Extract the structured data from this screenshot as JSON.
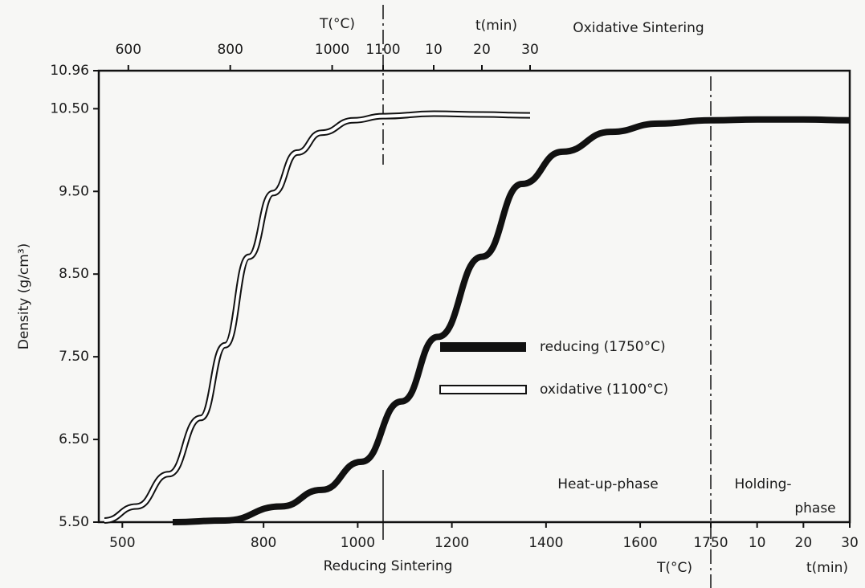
{
  "chart_data": {
    "type": "line",
    "y_label": "Density (g/cm³)",
    "ylim": [
      5.5,
      10.96
    ],
    "yticks": [
      {
        "value": 5.5,
        "label": "5.50"
      },
      {
        "value": 6.5,
        "label": "6.50"
      },
      {
        "value": 7.5,
        "label": "7.50"
      },
      {
        "value": 8.5,
        "label": "8.50"
      },
      {
        "value": 9.5,
        "label": "9.50"
      },
      {
        "value": 10.5,
        "label": "10.50"
      },
      10.96
    ],
    "x_title": "Reducing Sintering",
    "x_unit": "T(°C)",
    "xlim": [
      450,
      1750
    ],
    "xticks": [
      500,
      800,
      1000,
      1200,
      1400,
      1600,
      1750
    ],
    "x_time_unit": "t(min)",
    "x_time_lim": [
      0,
      30
    ],
    "x_time_ticks": [
      10,
      20,
      30
    ],
    "top_title": "Oxidative Sintering",
    "top_unit": "T(°C)",
    "top_xlim": [
      542,
      1100
    ],
    "top_xticks": [
      600,
      800,
      1000,
      1100
    ],
    "top_time_unit": "t(min)",
    "top_time_lim": [
      0,
      30
    ],
    "top_time_ticks": [
      10,
      20,
      30
    ],
    "phase_labels": [
      "Heat-up-phase",
      "Holding-",
      "phase"
    ],
    "series": [
      {
        "name": "reducing (1750°C)",
        "axis": "bottom",
        "color": "#111111",
        "x": [
          607,
          718,
          837,
          923,
          1008,
          1093,
          1170,
          1264,
          1349,
          1435,
          1537,
          1639,
          1750
        ],
        "values": [
          5.5,
          5.52,
          5.69,
          5.89,
          6.23,
          6.96,
          7.74,
          8.71,
          9.59,
          9.98,
          10.22,
          10.32,
          10.36
        ],
        "hold_x": [
          0,
          10,
          20,
          30
        ],
        "hold_values": [
          10.36,
          10.37,
          10.37,
          10.36
        ]
      },
      {
        "name": "oxidative (1100°C)",
        "axis": "top",
        "color": "#ffffff",
        "x": [
          553,
          616,
          679,
          742,
          790,
          837,
          884,
          932,
          979,
          1042,
          1100
        ],
        "values": [
          5.52,
          5.69,
          6.08,
          6.76,
          7.64,
          8.71,
          9.48,
          9.97,
          10.21,
          10.36,
          10.41
        ],
        "hold_x": [
          0,
          10,
          20,
          30
        ],
        "hold_values": [
          10.41,
          10.44,
          10.43,
          10.42
        ]
      }
    ]
  }
}
